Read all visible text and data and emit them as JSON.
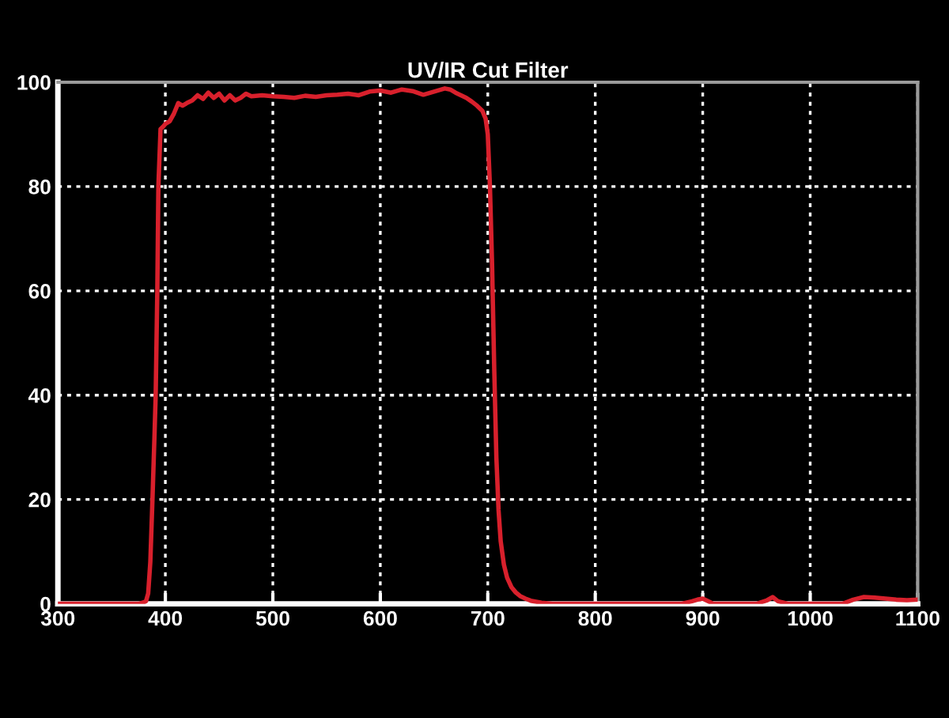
{
  "chart_data": {
    "type": "line",
    "title": "UV/IR Cut Filter",
    "series": [
      {
        "color": "#d8202c",
        "x": [
          300,
          375,
          380,
          382,
          384,
          386,
          388,
          390,
          391,
          392.5,
          393.5,
          395.5,
          398,
          400,
          404,
          408,
          412,
          416,
          420,
          425,
          430,
          435,
          440,
          445,
          450,
          455,
          460,
          465,
          470,
          475,
          480,
          490,
          500,
          510,
          520,
          530,
          540,
          550,
          560,
          570,
          580,
          590,
          600,
          610,
          620,
          630,
          640,
          650,
          660,
          665,
          670,
          675,
          680,
          685,
          690,
          695,
          698,
          700,
          702,
          704,
          706,
          708,
          710,
          712,
          715,
          718,
          722,
          726,
          730,
          735,
          740,
          750,
          760,
          800,
          880,
          890,
          895,
          900,
          905,
          910,
          950,
          960,
          965,
          970,
          980,
          1030,
          1040,
          1050,
          1060,
          1070,
          1080,
          1090,
          1100
        ],
        "values": [
          0,
          0,
          0.3,
          0.5,
          2,
          8,
          20,
          33,
          40,
          60,
          80,
          91,
          91.5,
          92,
          92.5,
          94,
          96,
          95.5,
          96,
          96.5,
          97.5,
          96.8,
          98,
          97,
          97.8,
          96.5,
          97.5,
          96.5,
          97,
          97.8,
          97.3,
          97.5,
          97.3,
          97.2,
          97,
          97.4,
          97.2,
          97.5,
          97.6,
          97.8,
          97.5,
          98.2,
          98.4,
          98,
          98.6,
          98.3,
          97.6,
          98.2,
          98.8,
          98.6,
          98,
          97.5,
          97,
          96.3,
          95.5,
          94.5,
          93,
          90,
          80,
          65,
          45,
          28,
          18,
          12,
          7.5,
          5,
          3.2,
          2.2,
          1.5,
          1,
          0.6,
          0.2,
          0,
          0,
          0,
          0.5,
          0.8,
          1,
          0.5,
          0,
          0,
          0.7,
          1.3,
          0.5,
          0,
          0,
          0.8,
          1.3,
          1.2,
          1,
          0.8,
          0.7,
          0.8
        ]
      }
    ],
    "xlim": [
      300,
      1100
    ],
    "ylim": [
      0,
      100
    ],
    "xticks": [
      300,
      400,
      500,
      600,
      700,
      800,
      900,
      1000,
      1100
    ],
    "yticks": [
      0,
      20,
      40,
      60,
      80,
      100
    ],
    "grid": true,
    "marker": "none",
    "line_style": "solid"
  }
}
